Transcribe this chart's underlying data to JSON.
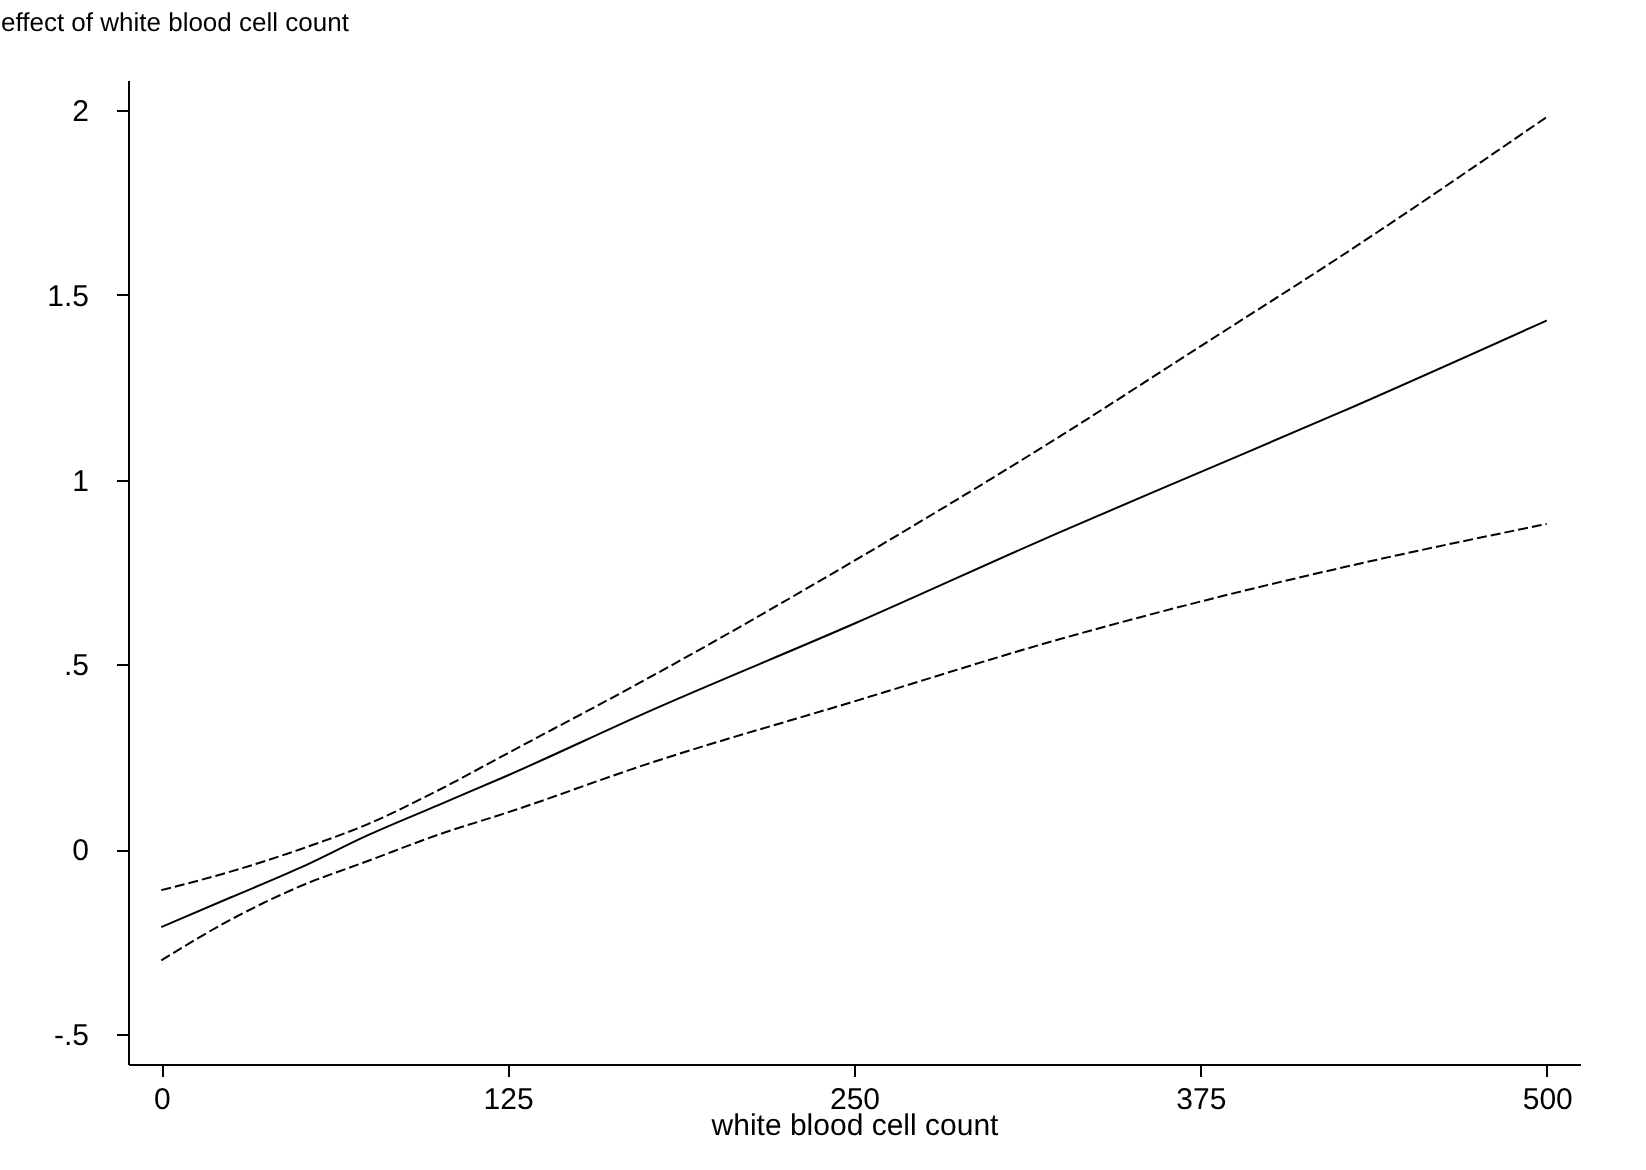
{
  "chart_data": {
    "type": "line",
    "xlabel": "white blood cell count",
    "ylabel": "effect of white blood cell count",
    "x": [
      0,
      25,
      50,
      75,
      100,
      125,
      175,
      250,
      325,
      375,
      425,
      500
    ],
    "series": [
      {
        "color": "#000000",
        "line_style": "solid",
        "values": [
          -0.21,
          -0.13,
          -0.05,
          0.04,
          0.12,
          0.2,
          0.37,
          0.61,
          0.86,
          1.02,
          1.18,
          1.43
        ]
      },
      {
        "color": "#000000",
        "line_style": "dashed",
        "values": [
          -0.11,
          -0.06,
          0.0,
          0.07,
          0.16,
          0.26,
          0.46,
          0.78,
          1.12,
          1.36,
          1.6,
          1.98
        ]
      },
      {
        "color": "#000000",
        "line_style": "dashed",
        "values": [
          -0.3,
          -0.19,
          -0.1,
          -0.03,
          0.04,
          0.1,
          0.23,
          0.4,
          0.57,
          0.67,
          0.76,
          0.88
        ]
      }
    ],
    "xlim": [
      -12,
      512
    ],
    "ylim": [
      -0.58,
      2.08
    ],
    "xticks": [
      0,
      125,
      250,
      375,
      500
    ],
    "yticks": [
      {
        "value": -0.5,
        "label": "-.5"
      },
      0,
      {
        "value": 0.5,
        "label": ".5"
      },
      1,
      1.5,
      2
    ],
    "grid": false
  }
}
